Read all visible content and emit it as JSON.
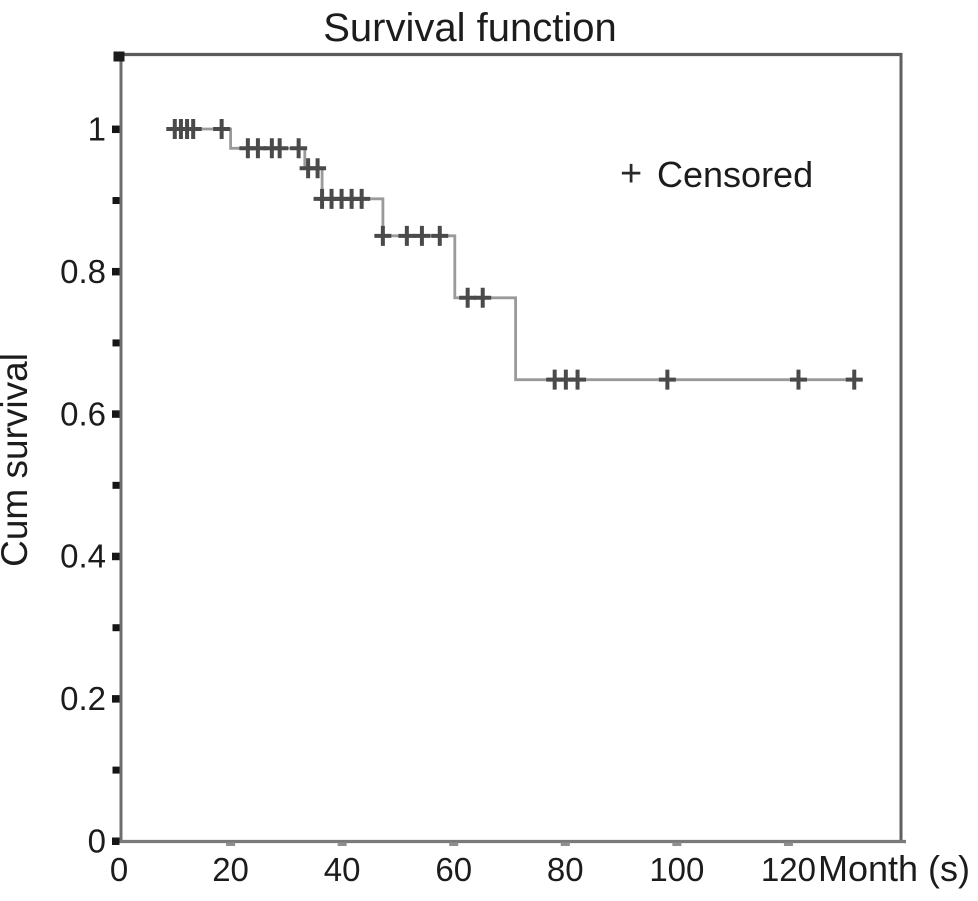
{
  "chart_data": {
    "type": "line",
    "subtype": "kaplan-meier-step-function",
    "title": "Survival function",
    "xlabel": "Month (s)",
    "ylabel": "Cum survival",
    "xlim": [
      0,
      140
    ],
    "ylim": [
      0,
      1.104
    ],
    "grid": false,
    "x_ticks": [
      0,
      20,
      40,
      60,
      80,
      100,
      120
    ],
    "y_ticks": [
      0,
      0.2,
      0.4,
      0.6,
      0.8,
      1
    ],
    "y_tick_labels": [
      "0",
      "0.2",
      "0.4",
      "0.6",
      "0.8",
      "1"
    ],
    "y_minor_ticks": [
      0.1,
      0.3,
      0.5,
      0.7,
      0.9
    ],
    "legend": {
      "marker": "+",
      "label": "Censored",
      "position": "upper-right-inside"
    },
    "series": [
      {
        "name": "Survival function",
        "start_time": 9,
        "end_time": 133,
        "event_times": [
          20,
          33.3,
          36.4,
          47.3,
          60.2,
          71.1
        ],
        "survival_levels": [
          1.0,
          0.973,
          0.945,
          0.902,
          0.85,
          0.763,
          0.648
        ],
        "color": "#9a9a9a"
      }
    ],
    "censored_points": [
      [
        10,
        1.0
      ],
      [
        11.1,
        1.0
      ],
      [
        12.2,
        1.0
      ],
      [
        13.3,
        1.0
      ],
      [
        18.4,
        1.0
      ],
      [
        23.1,
        0.973
      ],
      [
        24.9,
        0.973
      ],
      [
        27.4,
        0.973
      ],
      [
        28.8,
        0.973
      ],
      [
        32.2,
        0.973
      ],
      [
        33.9,
        0.945
      ],
      [
        35.6,
        0.945
      ],
      [
        36.4,
        0.902
      ],
      [
        38.1,
        0.902
      ],
      [
        39.9,
        0.902
      ],
      [
        41.7,
        0.902
      ],
      [
        43.5,
        0.902
      ],
      [
        47.3,
        0.85
      ],
      [
        51.6,
        0.85
      ],
      [
        54.3,
        0.85
      ],
      [
        57.5,
        0.85
      ],
      [
        62.5,
        0.763
      ],
      [
        65.2,
        0.763
      ],
      [
        78.1,
        0.648
      ],
      [
        80.1,
        0.648
      ],
      [
        82.2,
        0.648
      ],
      [
        98.3,
        0.648
      ],
      [
        121.8,
        0.648
      ],
      [
        131.8,
        0.648
      ]
    ],
    "censor_color": "#4a4a4a",
    "axis_color": "#6e6e6e",
    "frame_color": "#5a5a5a",
    "tick_square_color": "#161616",
    "x_tick_mark_color": "#8f8f8f"
  }
}
